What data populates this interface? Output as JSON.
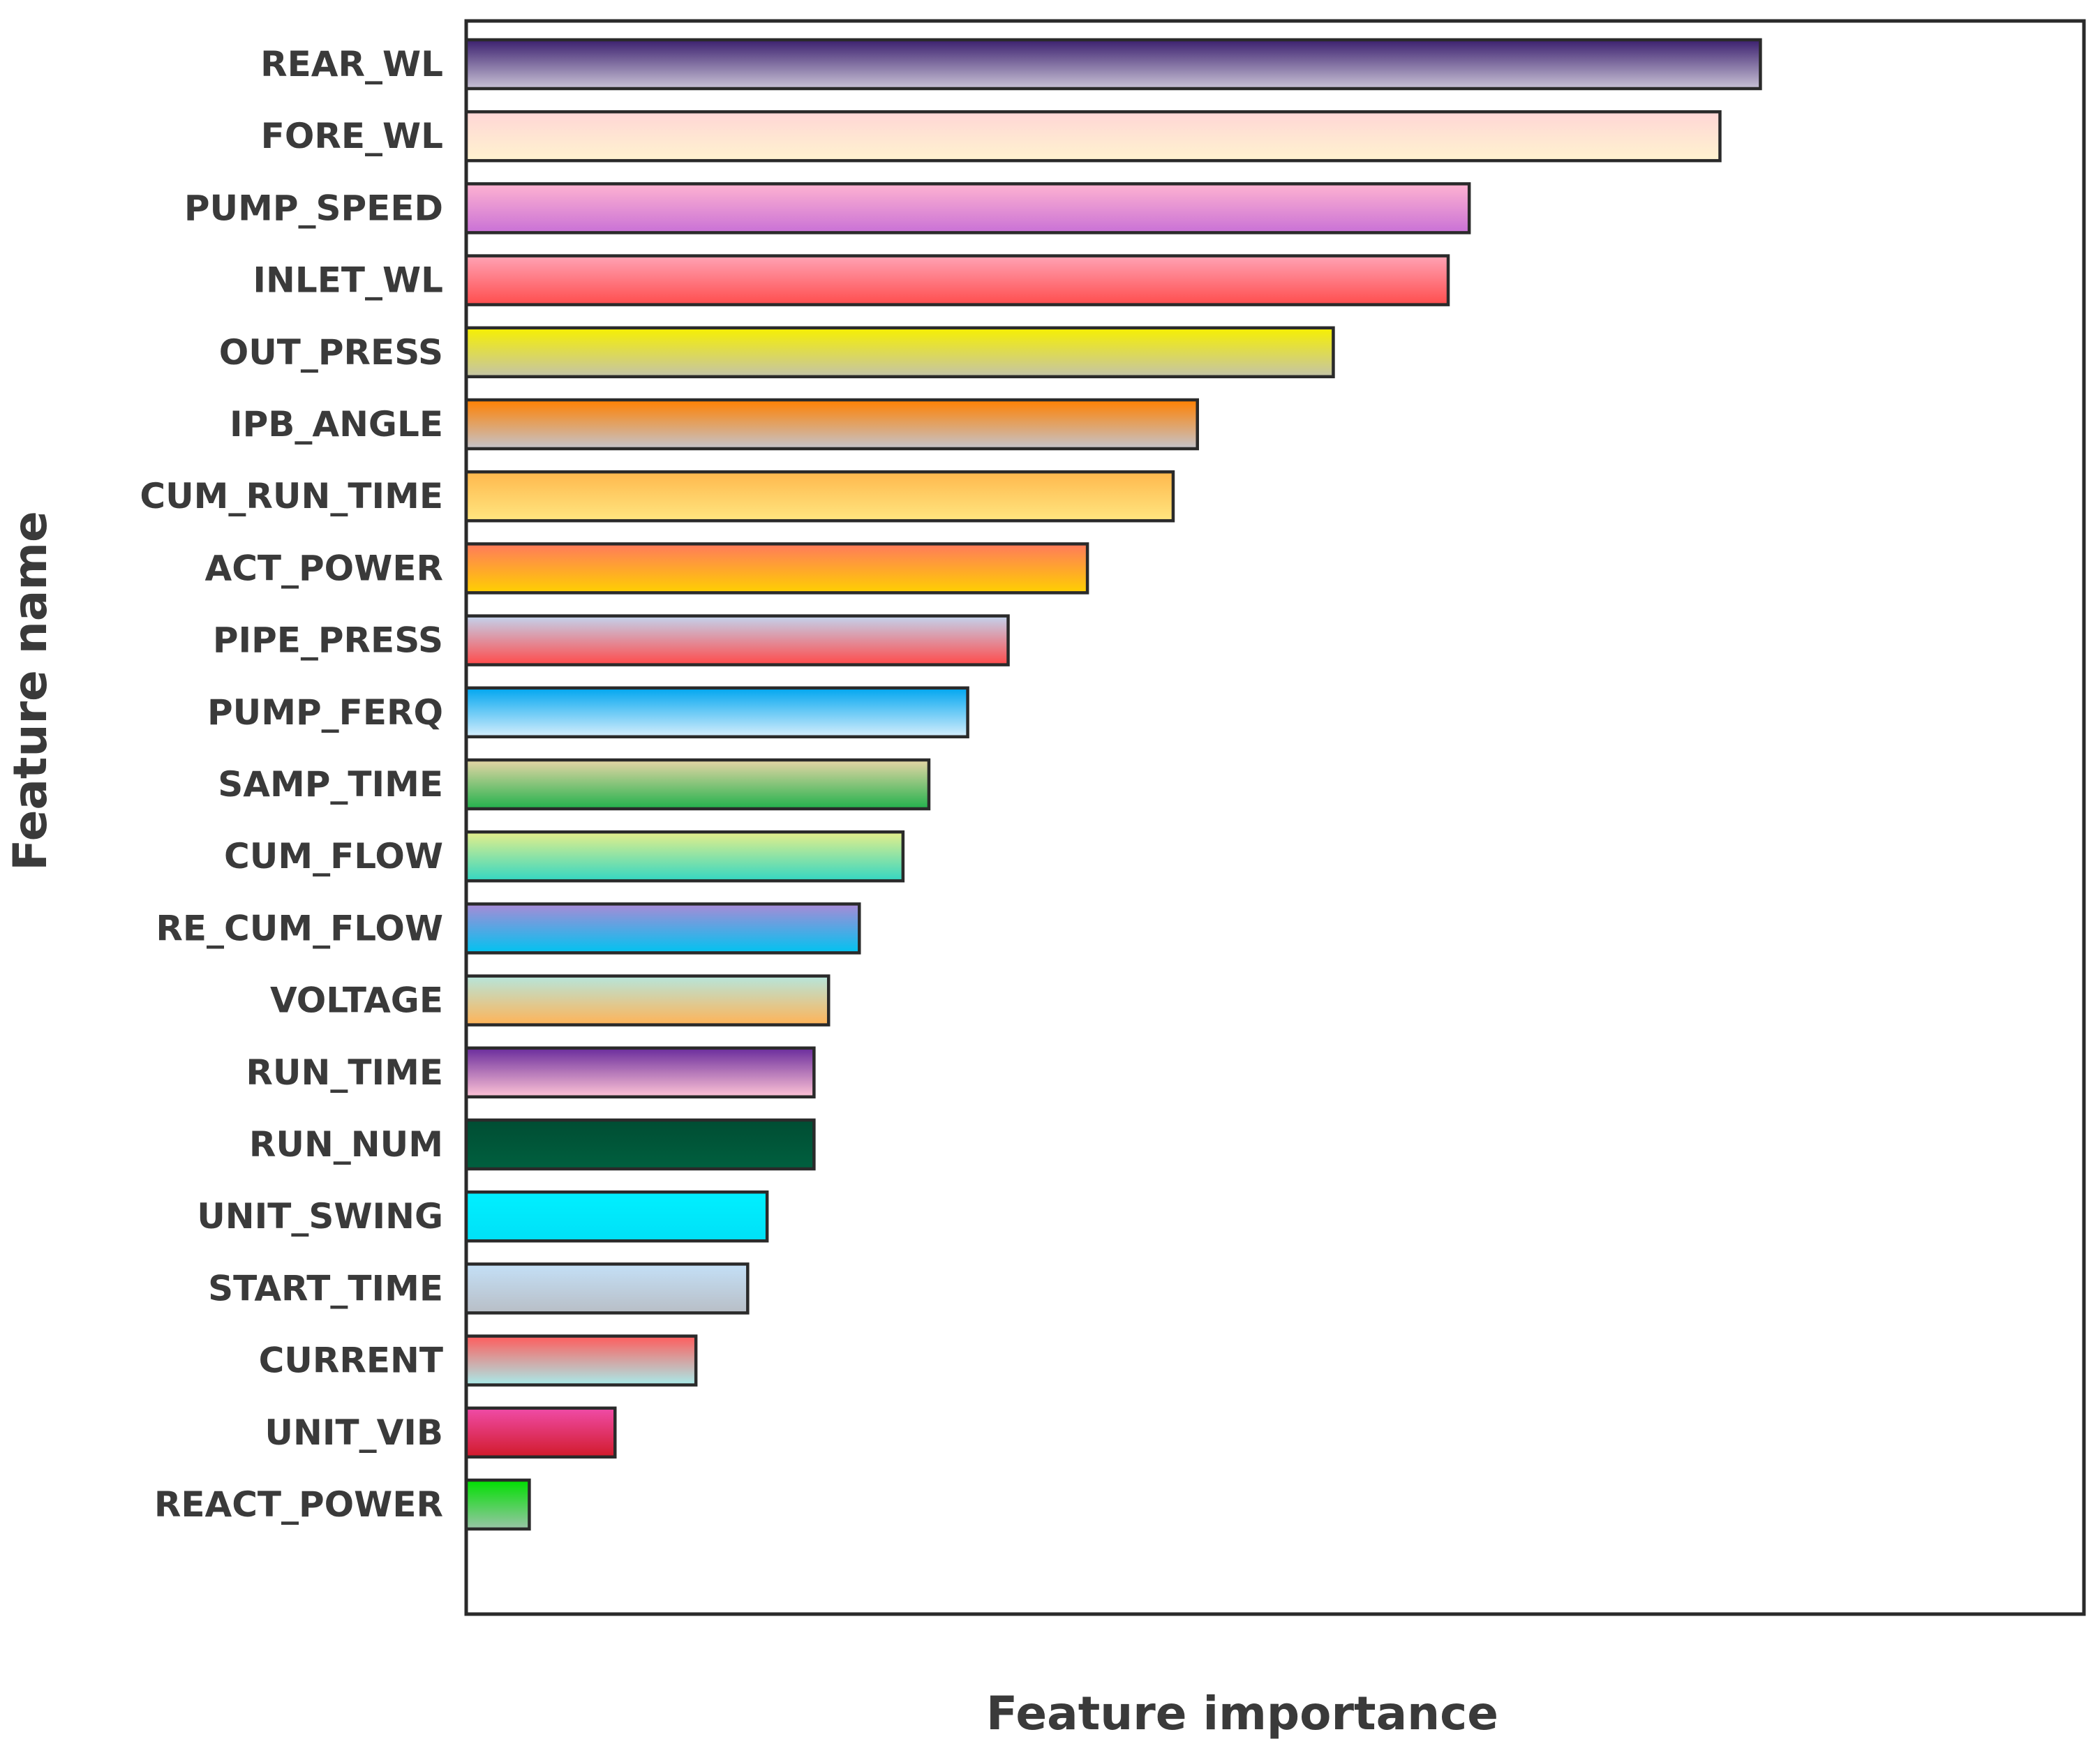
{
  "chart_data": {
    "type": "bar",
    "orientation": "horizontal",
    "title": "",
    "xlabel": "Feature importance",
    "ylabel": "Feature name",
    "categories": [
      "REAR_WL",
      "FORE_WL",
      "PUMP_SPEED",
      "INLET_WL",
      "OUT_PRESS",
      "IPB_ANGLE",
      "CUM_RUN_TIME",
      "ACT_POWER",
      "PIPE_PRESS",
      "PUMP_FERQ",
      "SAMP_TIME",
      "CUM_FLOW",
      "RE_CUM_FLOW",
      "VOLTAGE",
      "RUN_TIME",
      "RUN_NUM",
      "UNIT_SWING",
      "START_TIME",
      "CURRENT",
      "UNIT_VIB",
      "REACT_POWER"
    ],
    "values": [
      0.8,
      0.775,
      0.62,
      0.607,
      0.536,
      0.452,
      0.437,
      0.384,
      0.335,
      0.31,
      0.286,
      0.27,
      0.243,
      0.224,
      0.215,
      0.215,
      0.186,
      0.174,
      0.142,
      0.092,
      0.039
    ],
    "xlim": [
      0,
      1
    ],
    "xticks_shown": false,
    "grid": false,
    "legend": "none",
    "bar_gradients": [
      [
        "#3b1f6e",
        "#c9c3d6"
      ],
      [
        "#ffd6d6",
        "#fff3cf"
      ],
      [
        "#ffb3d1",
        "#c971d6"
      ],
      [
        "#ffa3b5",
        "#ff4d4d"
      ],
      [
        "#f7f000",
        "#c4c4a8"
      ],
      [
        "#ff8000",
        "#c4c4cc"
      ],
      [
        "#ffb84d",
        "#ffe680"
      ],
      [
        "#ff7a5c",
        "#ffd000"
      ],
      [
        "#c2d4ee",
        "#ff4a4a"
      ],
      [
        "#00a6f0",
        "#d6eefc"
      ],
      [
        "#e6d6a6",
        "#22b14c"
      ],
      [
        "#e6ef8a",
        "#33d6c2"
      ],
      [
        "#a98ad6",
        "#00c3f0"
      ],
      [
        "#b6e6dc",
        "#ffb357"
      ],
      [
        "#6a2c9c",
        "#ffc4d6"
      ],
      [
        "#004d33",
        "#00603f"
      ],
      [
        "#00f0ff",
        "#00e0f7"
      ],
      [
        "#c4e0f7",
        "#b8bec6"
      ],
      [
        "#ff5c5c",
        "#a8ecea"
      ],
      [
        "#f04ca8",
        "#d11a2a"
      ],
      [
        "#00e000",
        "#9ac4a8"
      ]
    ]
  }
}
